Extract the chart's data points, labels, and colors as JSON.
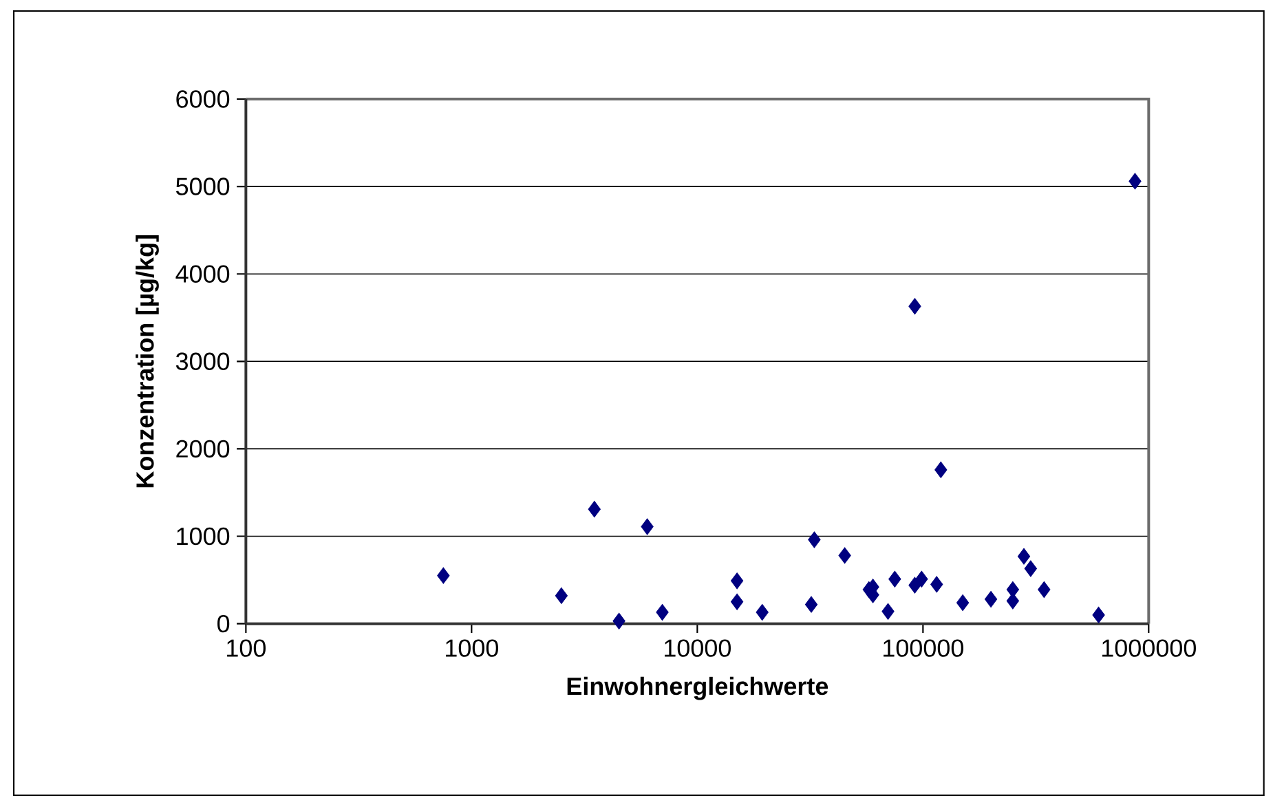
{
  "chart_data": {
    "type": "scatter",
    "xlabel": "Einwohnergleichwerte",
    "ylabel": "Konzentration [µg/kg]",
    "log": "x",
    "xlim": [
      100,
      1000000
    ],
    "xticks": [
      100,
      1000,
      10000,
      100000,
      1000000
    ],
    "ylim": [
      0,
      6000
    ],
    "yticks": [
      0,
      1000,
      2000,
      3000,
      4000,
      5000,
      6000
    ],
    "grid": "y",
    "marker": "diamond",
    "series": [
      {
        "color": "#000080",
        "x": [
          750,
          2500,
          3500,
          4500,
          6000,
          7000,
          15000,
          15000,
          19400,
          33000,
          32000,
          45000,
          57600,
          60000,
          60000,
          70000,
          75000,
          92000,
          98600,
          115000,
          120000,
          92000,
          150000,
          200000,
          250000,
          250000,
          280000,
          300000,
          344000,
          600000,
          870000
        ],
        "values": [
          550,
          320,
          1310,
          30,
          1110,
          130,
          490,
          250,
          130,
          960,
          220,
          780,
          390,
          420,
          330,
          140,
          510,
          440,
          510,
          450,
          1760,
          3630,
          240,
          280,
          390,
          260,
          770,
          630,
          390,
          100,
          5060
        ]
      }
    ]
  }
}
